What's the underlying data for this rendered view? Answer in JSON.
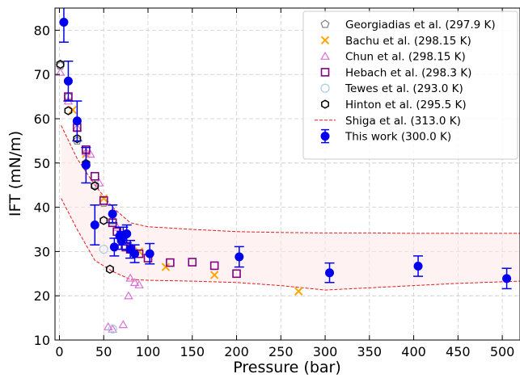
{
  "chart_data": {
    "type": "scatter",
    "xlabel": "Pressure  (bar)",
    "ylabel": "IFT  (mN/m)",
    "xlim": [
      -5,
      520
    ],
    "ylim": [
      10,
      85
    ],
    "xticks": [
      0,
      50,
      100,
      150,
      200,
      250,
      300,
      350,
      400,
      450,
      500
    ],
    "yticks": [
      10,
      20,
      30,
      40,
      50,
      60,
      70,
      80
    ],
    "grid": true,
    "legend_position": "top-right",
    "series": [
      {
        "name": "Georgiadias et al. (297.9 K)",
        "marker": "pentagon",
        "color": "#888888",
        "x": [
          1,
          10,
          20,
          30,
          40,
          50,
          60,
          70,
          80
        ],
        "y": [
          72,
          65,
          55,
          50,
          45,
          41,
          37,
          33,
          31
        ]
      },
      {
        "name": "Bachu et al. (298.15 K)",
        "marker": "x",
        "color": "#ffa500",
        "x": [
          15,
          30,
          50,
          70,
          90,
          120,
          175,
          270
        ],
        "y": [
          62,
          52,
          42,
          34,
          30,
          26.5,
          24.7,
          21
        ]
      },
      {
        "name": "Chun et al. (298.15 K)",
        "marker": "triangle",
        "color": "#da70d6",
        "x": [
          1,
          10,
          20,
          30,
          35,
          45,
          55,
          60,
          65,
          72,
          78,
          80,
          85,
          90
        ],
        "y": [
          70.5,
          64,
          58,
          52.5,
          52,
          45.5,
          13,
          12.5,
          35.5,
          13.5,
          20,
          24,
          23,
          22.5
        ]
      },
      {
        "name": "Hebach et al. (298.3 K)",
        "marker": "square",
        "color": "#800080",
        "x": [
          10,
          20,
          30,
          40,
          50,
          60,
          65,
          70,
          75,
          80,
          90,
          100,
          125,
          150,
          175,
          200
        ],
        "y": [
          65,
          58,
          53,
          47,
          41.5,
          36.5,
          34.5,
          33,
          31,
          30.5,
          29.5,
          28.5,
          27.5,
          27.6,
          26.8,
          25
        ]
      },
      {
        "name": "Tewes et al. (293.0 K)",
        "marker": "circle-open",
        "color": "#a6cee3",
        "x": [
          50,
          60
        ],
        "y": [
          30.5,
          12.5
        ]
      },
      {
        "name": "Hinton et al. (295.5 K)",
        "marker": "hexagon",
        "color": "#000000",
        "x": [
          1,
          10,
          20,
          30,
          40,
          50,
          57
        ],
        "y": [
          72.3,
          61.8,
          55.5,
          49.8,
          44.8,
          37,
          26
        ]
      },
      {
        "name": "Shiga et al. (313.0 K)",
        "marker": "dashed-band",
        "color": "#e41a1c",
        "x": [
          2,
          20,
          40,
          60,
          80,
          100,
          150,
          200,
          250,
          300,
          350,
          400,
          450,
          520
        ],
        "upper": [
          58.5,
          51,
          45,
          40,
          36.5,
          35.6,
          35,
          34.5,
          34.3,
          34.2,
          34.2,
          34.1,
          34.1,
          34.1
        ],
        "lower": [
          42,
          35,
          28,
          25.5,
          23.7,
          23.5,
          23.3,
          23,
          22.3,
          21.3,
          21.8,
          22.3,
          22.8,
          23.3
        ]
      },
      {
        "name": "This work (300.0 K)",
        "marker": "filled-circle-errorbar",
        "color": "#0000ee",
        "x": [
          5,
          10,
          20,
          30,
          40,
          60,
          62,
          68,
          70,
          72,
          76,
          80,
          85,
          102,
          203,
          305,
          405,
          505
        ],
        "y": [
          81.8,
          68.5,
          59.5,
          49.5,
          36,
          38.5,
          31,
          33.5,
          32.5,
          33.5,
          34,
          30.5,
          29.5,
          29.5,
          28.8,
          25.2,
          26.7,
          23.9
        ],
        "err": [
          4.5,
          4.5,
          4.5,
          4,
          4.5,
          2,
          2,
          2,
          2,
          2,
          2,
          2,
          2,
          2.3,
          2.3,
          2.2,
          2.3,
          2.3
        ]
      }
    ]
  }
}
